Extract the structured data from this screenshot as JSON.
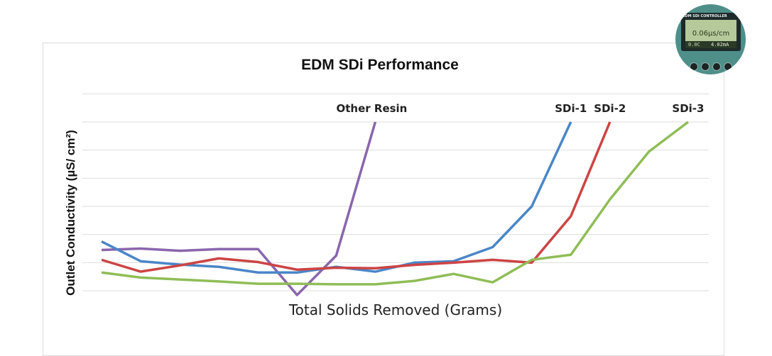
{
  "chart_data": {
    "type": "line",
    "title": "EDM SDi Performance",
    "xlabel": "Total Solids Removed (Grams)",
    "ylabel": "Outlet Conductivity (µS/ cm²)",
    "xlim": [
      0,
      16
    ],
    "ylim": [
      0,
      6
    ],
    "grid": true,
    "series": [
      {
        "name": "Other Resin",
        "color": "#8a66ad",
        "x": [
          0,
          1,
          2,
          3,
          4,
          5,
          6,
          7
        ],
        "y": [
          1.45,
          1.5,
          1.42,
          1.48,
          1.48,
          -0.15,
          1.25,
          6.0
        ]
      },
      {
        "name": "SDi-1",
        "color": "#4a86c8",
        "x": [
          0,
          1,
          2,
          3,
          4,
          5,
          6,
          7,
          8,
          9,
          10,
          11,
          12
        ],
        "y": [
          1.75,
          1.05,
          0.93,
          0.85,
          0.65,
          0.65,
          0.85,
          0.68,
          1.0,
          1.05,
          1.55,
          3.0,
          6.0
        ]
      },
      {
        "name": "SDi-2",
        "color": "#cc4444",
        "x": [
          0,
          1,
          2,
          3,
          4,
          5,
          6,
          7,
          8,
          9,
          10,
          11,
          12,
          13
        ],
        "y": [
          1.1,
          0.68,
          0.9,
          1.15,
          1.02,
          0.75,
          0.82,
          0.8,
          0.92,
          1.0,
          1.1,
          1.0,
          2.65,
          6.0
        ]
      },
      {
        "name": "SDi-3",
        "color": "#8fbd58",
        "x": [
          0,
          1,
          2,
          3,
          4,
          5,
          6,
          7,
          8,
          9,
          10,
          11,
          12,
          13,
          14,
          15
        ],
        "y": [
          0.65,
          0.47,
          0.4,
          0.33,
          0.25,
          0.25,
          0.23,
          0.23,
          0.35,
          0.6,
          0.3,
          1.1,
          1.28,
          3.25,
          4.95,
          6.0
        ]
      }
    ]
  },
  "device_thumbnail": {
    "header": "EDM SDi CONTROLLER",
    "reading": "0.06µs/cm",
    "sub_left": "0.0C",
    "sub_right": "4.02mA"
  }
}
